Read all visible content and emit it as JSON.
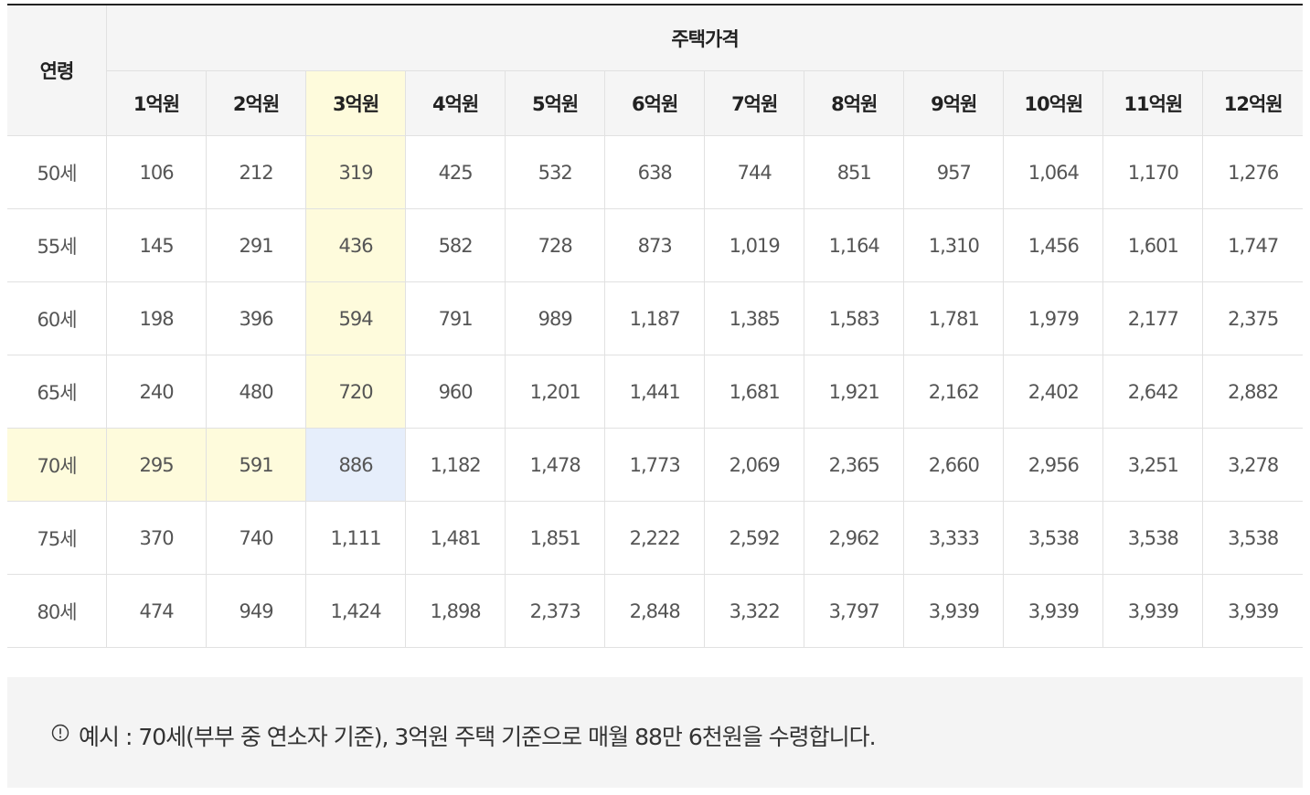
{
  "table": {
    "age_header": "연령",
    "price_header": "주택가격",
    "price_columns": [
      "1억원",
      "2억원",
      "3억원",
      "4억원",
      "5억원",
      "6억원",
      "7억원",
      "8억원",
      "9억원",
      "10억원",
      "11억원",
      "12억원"
    ],
    "rows": [
      {
        "age": "50세",
        "values": [
          "106",
          "212",
          "319",
          "425",
          "532",
          "638",
          "744",
          "851",
          "957",
          "1,064",
          "1,170",
          "1,276"
        ]
      },
      {
        "age": "55세",
        "values": [
          "145",
          "291",
          "436",
          "582",
          "728",
          "873",
          "1,019",
          "1,164",
          "1,310",
          "1,456",
          "1,601",
          "1,747"
        ]
      },
      {
        "age": "60세",
        "values": [
          "198",
          "396",
          "594",
          "791",
          "989",
          "1,187",
          "1,385",
          "1,583",
          "1,781",
          "1,979",
          "2,177",
          "2,375"
        ]
      },
      {
        "age": "65세",
        "values": [
          "240",
          "480",
          "720",
          "960",
          "1,201",
          "1,441",
          "1,681",
          "1,921",
          "2,162",
          "2,402",
          "2,642",
          "2,882"
        ]
      },
      {
        "age": "70세",
        "values": [
          "295",
          "591",
          "886",
          "1,182",
          "1,478",
          "1,773",
          "2,069",
          "2,365",
          "2,660",
          "2,956",
          "3,251",
          "3,278"
        ]
      },
      {
        "age": "75세",
        "values": [
          "370",
          "740",
          "1,111",
          "1,481",
          "1,851",
          "2,222",
          "2,592",
          "2,962",
          "3,333",
          "3,538",
          "3,538",
          "3,538"
        ]
      },
      {
        "age": "80세",
        "values": [
          "474",
          "949",
          "1,424",
          "1,898",
          "2,373",
          "2,848",
          "3,322",
          "3,797",
          "3,939",
          "3,939",
          "3,939",
          "3,939"
        ]
      }
    ],
    "highlight_column_index": 2,
    "highlight_row_index": 4,
    "colors": {
      "highlight_yellow": "#fefbdc",
      "highlight_blue": "#e6eefb",
      "header_bg": "#f5f5f5",
      "top_border": "#222222"
    }
  },
  "note": {
    "icon": "info-circle-icon",
    "text": "예시 : 70세(부부 중 연소자 기준), 3억원 주택 기준으로 매월 88만 6천원을 수령합니다."
  }
}
